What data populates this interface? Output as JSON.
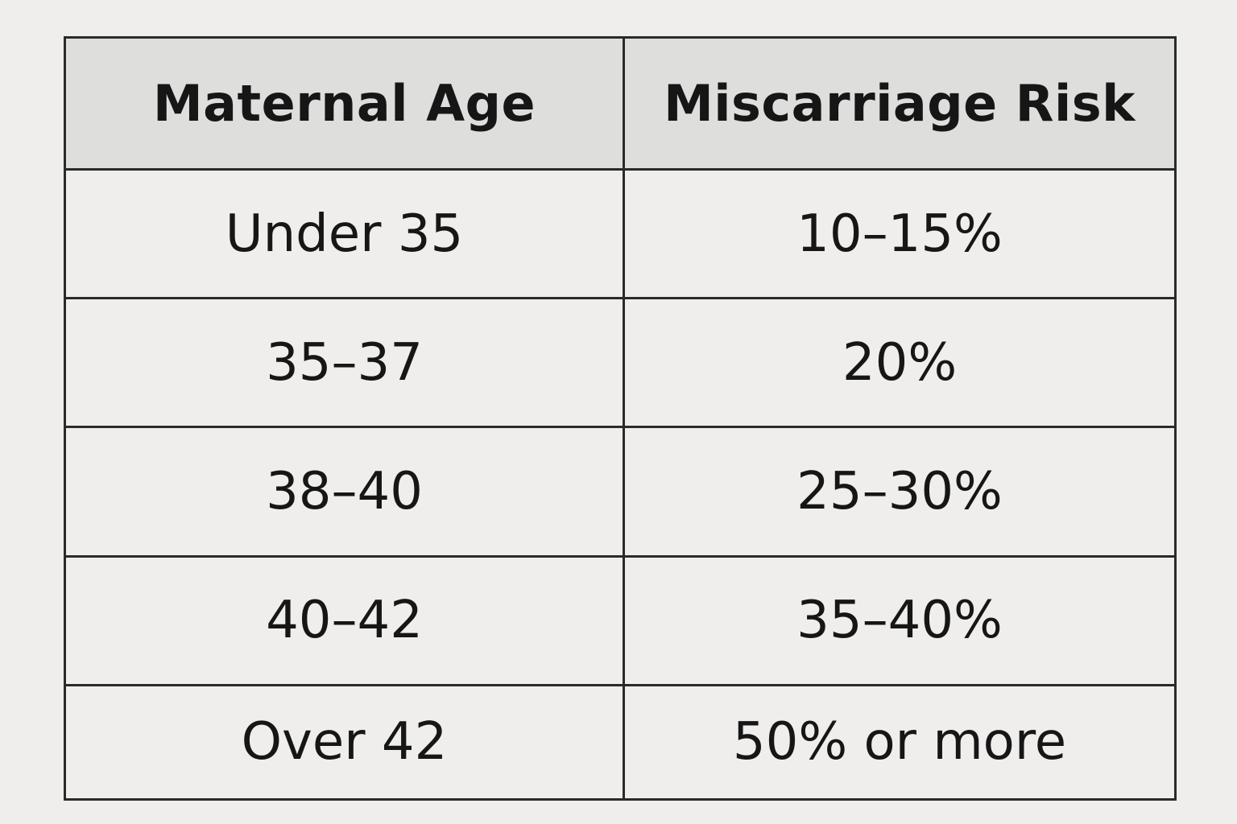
{
  "table": {
    "headers": [
      "Maternal Age",
      "Miscarriage Risk"
    ],
    "rows": [
      [
        "Under 35",
        "10–15%"
      ],
      [
        "35–37",
        "20%"
      ],
      [
        "38–40",
        "25–30%"
      ],
      [
        "40–42",
        "35–40%"
      ],
      [
        "Over 42",
        "50% or more"
      ]
    ]
  }
}
